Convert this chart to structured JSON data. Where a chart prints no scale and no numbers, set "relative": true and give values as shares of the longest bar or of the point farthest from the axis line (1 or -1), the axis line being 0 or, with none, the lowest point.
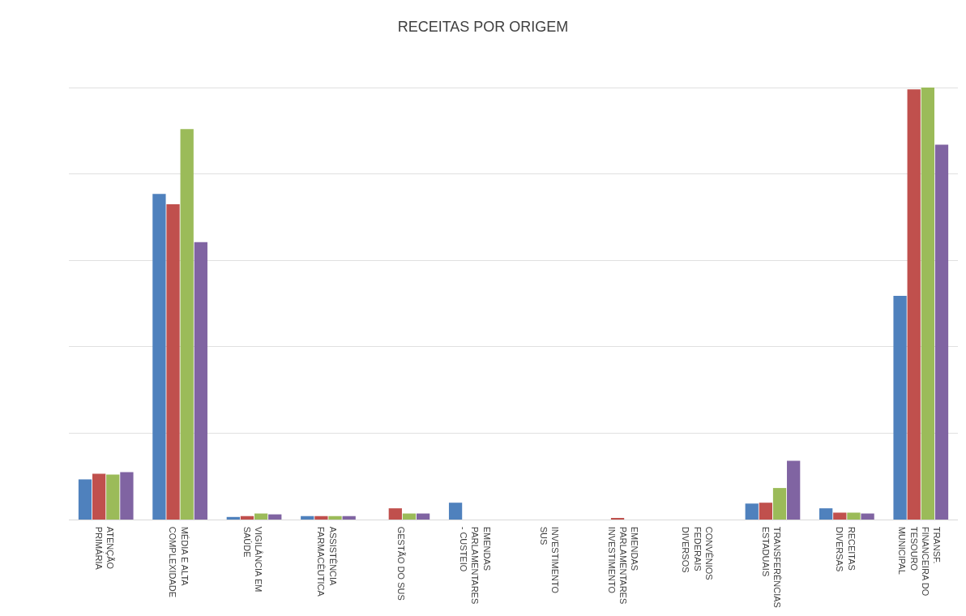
{
  "chart_data": {
    "type": "bar",
    "title": "RECEITAS POR ORIGEM",
    "relative": true,
    "grid": "y",
    "categories": [
      "ATENÇÃO PRIMÁRIA",
      "MÉDIA E ALTA COMPLEXIDADE",
      "VIGILÂNCIA EM SAÚDE",
      "ASSISTÊNCIA FARMACÊUTICA",
      "GESTÃO DO SUS",
      "EMENDAS PARLAMENTARES - CUSTEIO",
      "INVESTIMENTO SUS",
      "EMENDAS PARLAMENTARES INVESTIMENTO",
      "CONVÊNIOS FEDERAIS DIVERSOS",
      "TRANSFERÊNCIAS ESTADUAIS",
      "RECEITAS DIVERSAS",
      "TRANSF. FINANCEIRA DO TESOURO MUNICIPAL"
    ],
    "series": [
      {
        "color": "#4f81bd",
        "values": [
          0.093,
          0.754,
          0.006,
          0.008,
          0,
          0.039,
          0,
          0,
          0,
          0.037,
          0.026,
          0.518
        ]
      },
      {
        "color": "#c0504d",
        "values": [
          0.106,
          0.73,
          0.008,
          0.008,
          0.026,
          0,
          0,
          0.002,
          0,
          0.039,
          0.016,
          0.996
        ]
      },
      {
        "color": "#9bbb59",
        "values": [
          0.104,
          0.904,
          0.014,
          0.008,
          0.014,
          0,
          0,
          0,
          0,
          0.073,
          0.016,
          1
        ]
      },
      {
        "color": "#8064a2",
        "values": [
          0.11,
          0.642,
          0.012,
          0.008,
          0.014,
          0,
          0,
          0,
          0,
          0.136,
          0.014,
          0.868
        ]
      }
    ]
  }
}
